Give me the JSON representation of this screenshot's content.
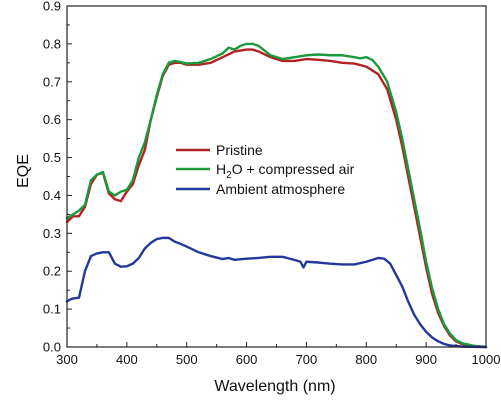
{
  "chart_data": {
    "type": "line",
    "title": "",
    "xlabel": "Wavelength (nm)",
    "ylabel": "EQE",
    "xlim": [
      300,
      1000
    ],
    "ylim": [
      0.0,
      0.9
    ],
    "x_ticks": [
      300,
      400,
      500,
      600,
      700,
      800,
      900,
      1000
    ],
    "y_ticks": [
      0.0,
      0.1,
      0.2,
      0.3,
      0.4,
      0.5,
      0.6,
      0.7,
      0.8,
      0.9
    ],
    "x_tick_labels": [
      "300",
      "400",
      "500",
      "600",
      "700",
      "800",
      "900",
      "1000"
    ],
    "y_tick_labels": [
      "0.0",
      "0.1",
      "0.2",
      "0.3",
      "0.4",
      "0.5",
      "0.6",
      "0.7",
      "0.8",
      "0.9"
    ],
    "grid": false,
    "legend_position": "center",
    "series": [
      {
        "name": "Pristine",
        "color": "#b22222",
        "points": [
          [
            300,
            0.33
          ],
          [
            310,
            0.345
          ],
          [
            320,
            0.345
          ],
          [
            330,
            0.37
          ],
          [
            340,
            0.43
          ],
          [
            350,
            0.455
          ],
          [
            360,
            0.46
          ],
          [
            370,
            0.405
          ],
          [
            380,
            0.39
          ],
          [
            390,
            0.385
          ],
          [
            400,
            0.41
          ],
          [
            410,
            0.43
          ],
          [
            420,
            0.48
          ],
          [
            430,
            0.52
          ],
          [
            440,
            0.6
          ],
          [
            450,
            0.66
          ],
          [
            460,
            0.715
          ],
          [
            470,
            0.745
          ],
          [
            480,
            0.75
          ],
          [
            490,
            0.75
          ],
          [
            500,
            0.745
          ],
          [
            520,
            0.745
          ],
          [
            540,
            0.75
          ],
          [
            560,
            0.765
          ],
          [
            580,
            0.78
          ],
          [
            600,
            0.785
          ],
          [
            610,
            0.785
          ],
          [
            620,
            0.78
          ],
          [
            640,
            0.765
          ],
          [
            660,
            0.755
          ],
          [
            680,
            0.755
          ],
          [
            700,
            0.76
          ],
          [
            720,
            0.758
          ],
          [
            740,
            0.755
          ],
          [
            760,
            0.75
          ],
          [
            780,
            0.748
          ],
          [
            800,
            0.74
          ],
          [
            820,
            0.72
          ],
          [
            835,
            0.68
          ],
          [
            850,
            0.6
          ],
          [
            860,
            0.53
          ],
          [
            870,
            0.45
          ],
          [
            880,
            0.37
          ],
          [
            890,
            0.29
          ],
          [
            900,
            0.21
          ],
          [
            910,
            0.14
          ],
          [
            920,
            0.09
          ],
          [
            930,
            0.055
          ],
          [
            940,
            0.03
          ],
          [
            950,
            0.015
          ],
          [
            960,
            0.008
          ],
          [
            980,
            0.002
          ],
          [
            1000,
            0.0
          ]
        ]
      },
      {
        "name": "H2O + compressed air",
        "color": "#1a9a3a",
        "points": [
          [
            300,
            0.34
          ],
          [
            310,
            0.35
          ],
          [
            320,
            0.36
          ],
          [
            330,
            0.375
          ],
          [
            340,
            0.44
          ],
          [
            350,
            0.455
          ],
          [
            360,
            0.462
          ],
          [
            370,
            0.41
          ],
          [
            380,
            0.4
          ],
          [
            390,
            0.41
          ],
          [
            400,
            0.415
          ],
          [
            410,
            0.44
          ],
          [
            420,
            0.5
          ],
          [
            430,
            0.54
          ],
          [
            440,
            0.6
          ],
          [
            450,
            0.665
          ],
          [
            460,
            0.72
          ],
          [
            470,
            0.75
          ],
          [
            480,
            0.755
          ],
          [
            490,
            0.752
          ],
          [
            500,
            0.748
          ],
          [
            520,
            0.75
          ],
          [
            540,
            0.76
          ],
          [
            560,
            0.775
          ],
          [
            570,
            0.79
          ],
          [
            580,
            0.785
          ],
          [
            590,
            0.795
          ],
          [
            600,
            0.8
          ],
          [
            610,
            0.8
          ],
          [
            620,
            0.795
          ],
          [
            640,
            0.77
          ],
          [
            660,
            0.76
          ],
          [
            680,
            0.765
          ],
          [
            700,
            0.77
          ],
          [
            720,
            0.772
          ],
          [
            740,
            0.77
          ],
          [
            760,
            0.77
          ],
          [
            780,
            0.765
          ],
          [
            790,
            0.762
          ],
          [
            800,
            0.765
          ],
          [
            810,
            0.758
          ],
          [
            820,
            0.74
          ],
          [
            835,
            0.7
          ],
          [
            850,
            0.62
          ],
          [
            860,
            0.55
          ],
          [
            870,
            0.47
          ],
          [
            880,
            0.39
          ],
          [
            890,
            0.31
          ],
          [
            900,
            0.225
          ],
          [
            910,
            0.155
          ],
          [
            920,
            0.1
          ],
          [
            930,
            0.06
          ],
          [
            940,
            0.035
          ],
          [
            950,
            0.018
          ],
          [
            960,
            0.01
          ],
          [
            980,
            0.003
          ],
          [
            1000,
            0.0
          ]
        ]
      },
      {
        "name": "Ambient atmosphere",
        "color": "#23389a",
        "points": [
          [
            300,
            0.12
          ],
          [
            305,
            0.125
          ],
          [
            310,
            0.128
          ],
          [
            320,
            0.13
          ],
          [
            330,
            0.2
          ],
          [
            340,
            0.24
          ],
          [
            350,
            0.247
          ],
          [
            360,
            0.25
          ],
          [
            370,
            0.25
          ],
          [
            380,
            0.22
          ],
          [
            390,
            0.212
          ],
          [
            400,
            0.213
          ],
          [
            410,
            0.22
          ],
          [
            420,
            0.235
          ],
          [
            430,
            0.26
          ],
          [
            440,
            0.275
          ],
          [
            450,
            0.285
          ],
          [
            460,
            0.288
          ],
          [
            470,
            0.288
          ],
          [
            480,
            0.278
          ],
          [
            490,
            0.272
          ],
          [
            500,
            0.265
          ],
          [
            520,
            0.25
          ],
          [
            540,
            0.24
          ],
          [
            560,
            0.232
          ],
          [
            570,
            0.235
          ],
          [
            580,
            0.23
          ],
          [
            600,
            0.233
          ],
          [
            620,
            0.235
          ],
          [
            640,
            0.238
          ],
          [
            660,
            0.238
          ],
          [
            680,
            0.23
          ],
          [
            690,
            0.225
          ],
          [
            695,
            0.21
          ],
          [
            700,
            0.225
          ],
          [
            720,
            0.223
          ],
          [
            740,
            0.22
          ],
          [
            760,
            0.218
          ],
          [
            780,
            0.218
          ],
          [
            800,
            0.225
          ],
          [
            820,
            0.235
          ],
          [
            830,
            0.233
          ],
          [
            840,
            0.22
          ],
          [
            850,
            0.19
          ],
          [
            860,
            0.16
          ],
          [
            870,
            0.12
          ],
          [
            880,
            0.085
          ],
          [
            890,
            0.06
          ],
          [
            900,
            0.04
          ],
          [
            910,
            0.025
          ],
          [
            920,
            0.015
          ],
          [
            930,
            0.008
          ],
          [
            940,
            0.004
          ],
          [
            960,
            0.001
          ],
          [
            1000,
            0.0
          ]
        ]
      }
    ],
    "legend_labels": {
      "pristine": "Pristine",
      "h2o_prefix": "H",
      "h2o_subscript": "2",
      "h2o_suffix": "O + compressed air",
      "ambient": "Ambient atmosphere"
    }
  }
}
